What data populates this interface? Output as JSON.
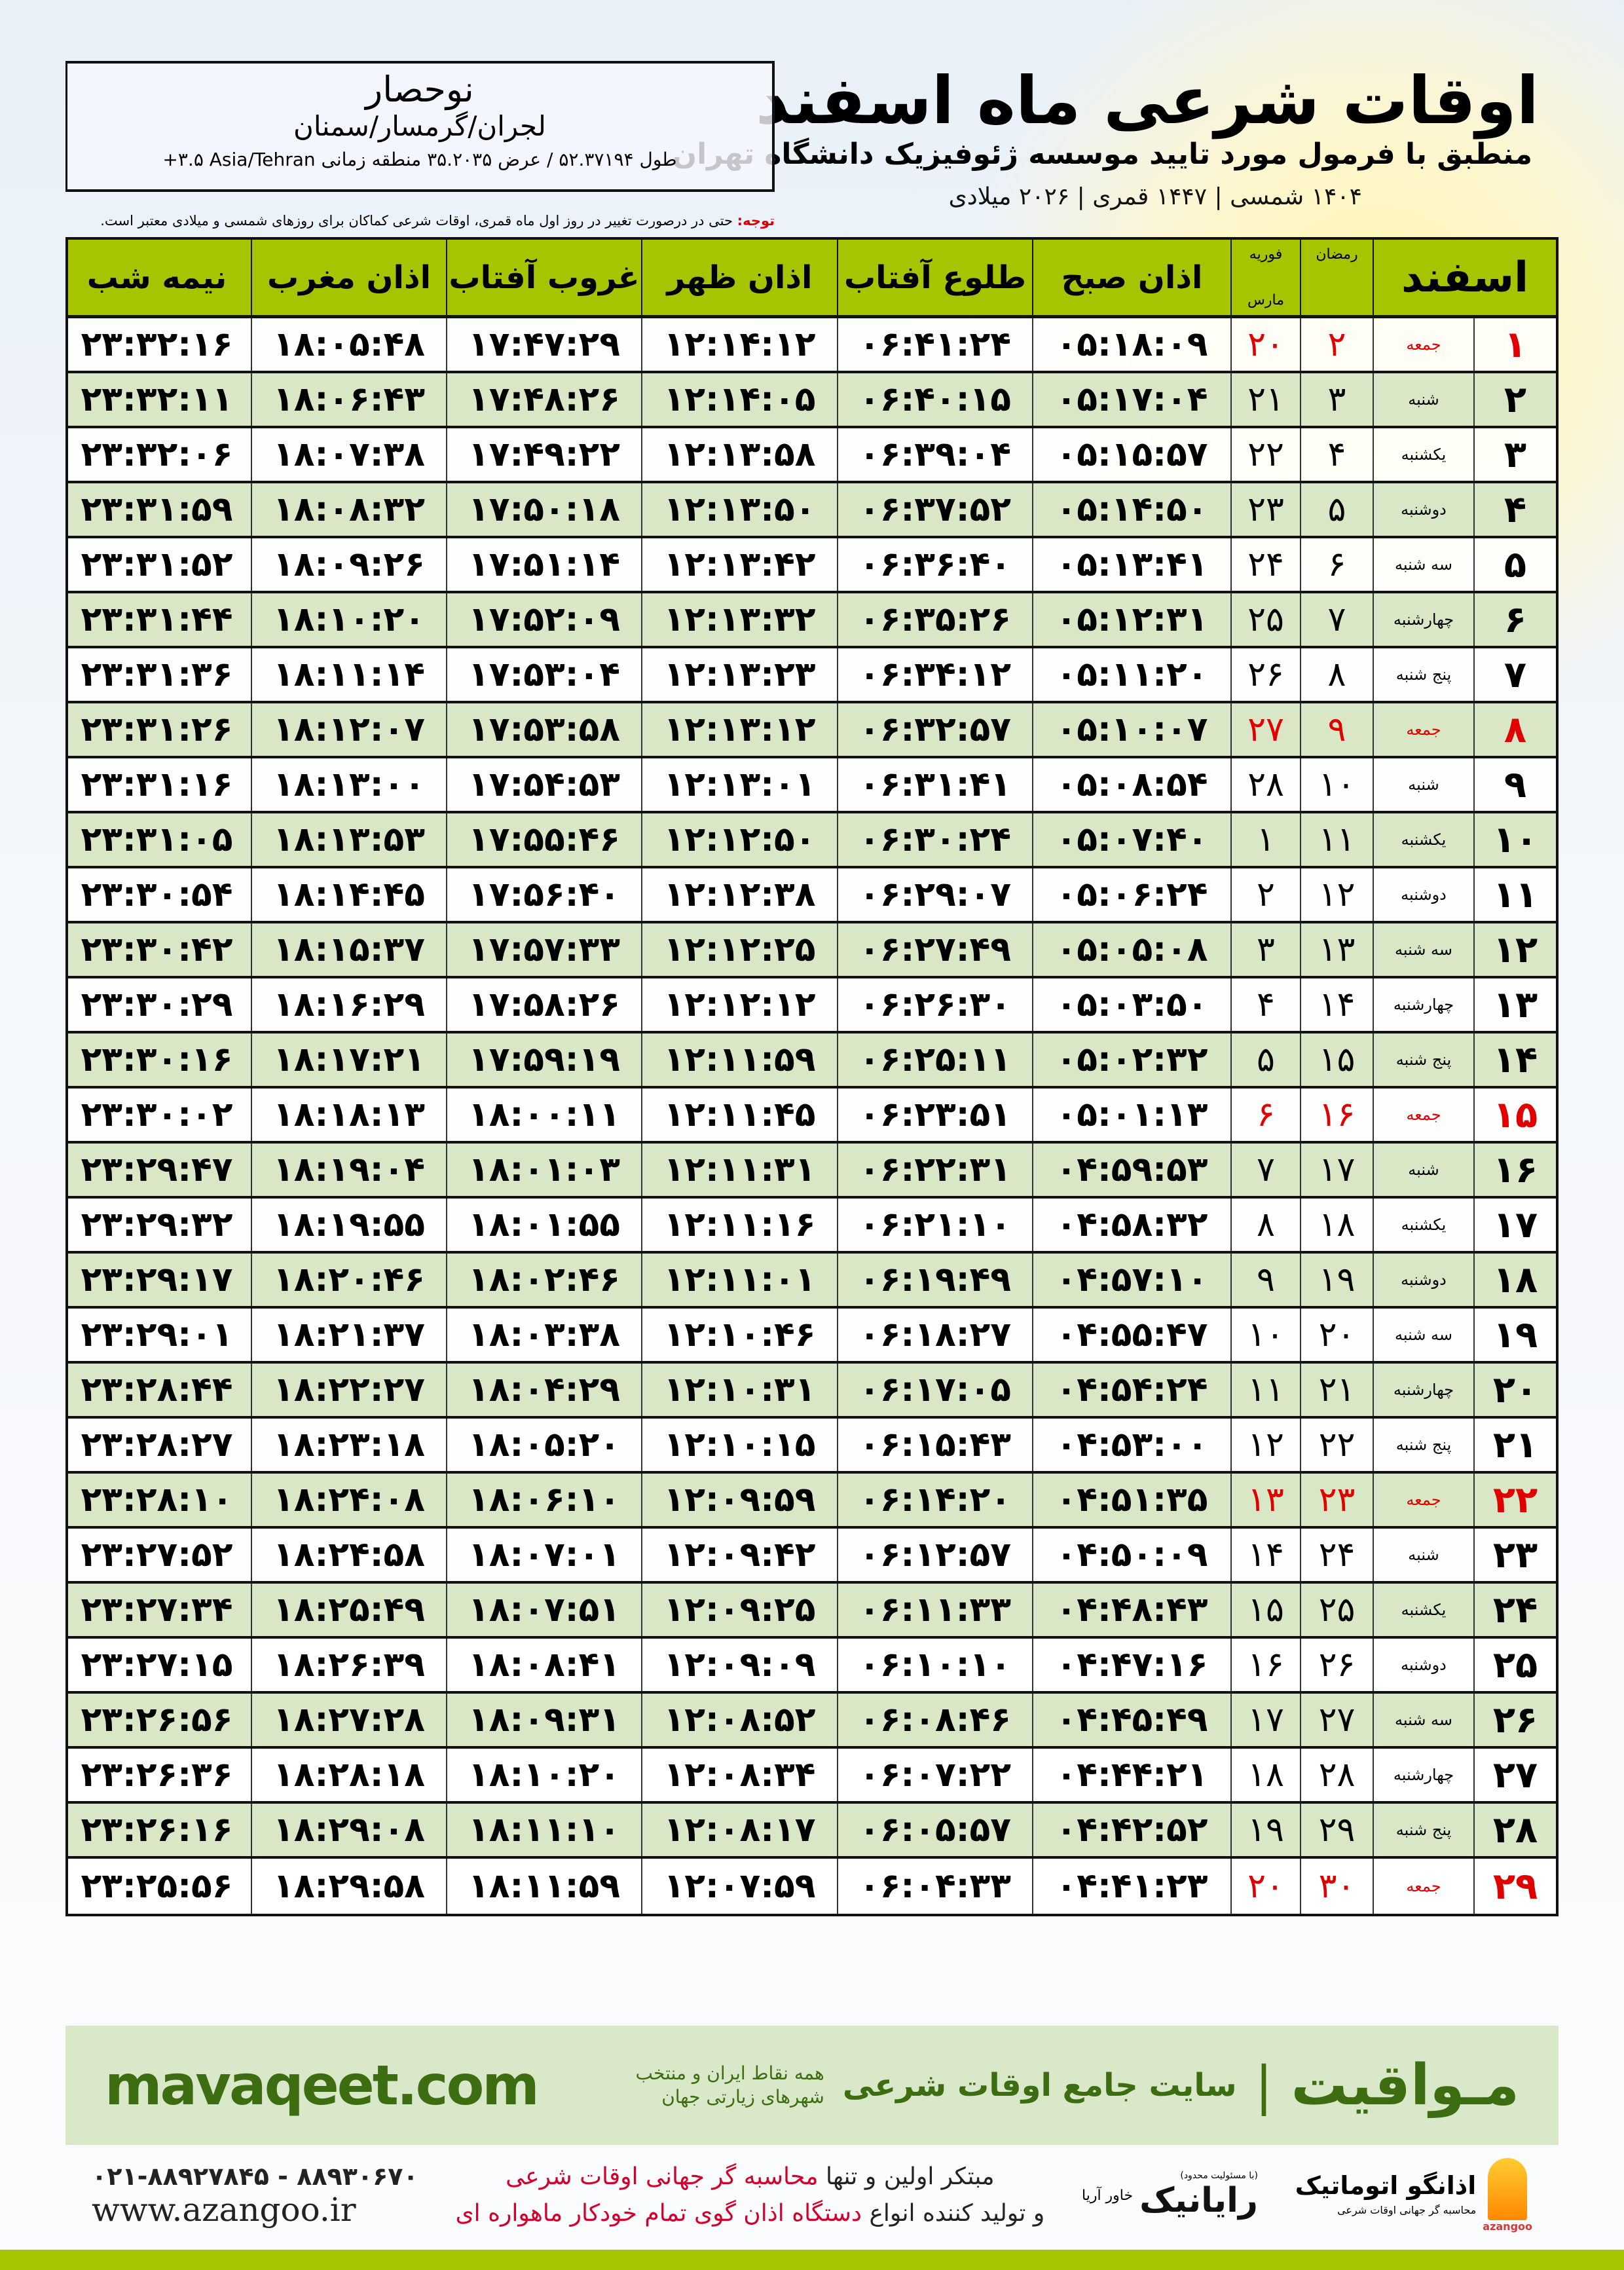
{
  "header": {
    "title": "اوقات شرعی ماه اسفند",
    "subtitle": "منطبق با فرمول مورد تایید موسسه ژئوفیزیک دانشگاه تهران",
    "dates": "۱۴۰۴ شمسی | ۱۴۴۷ قمری | ۲۰۲۶ میلادی"
  },
  "location": {
    "name": "نوحصار",
    "path": "لجران/گرمسار/سمنان",
    "coords": "طول ۵۲.۳۷۱۹۴ / عرض ۳۵.۲۰۳۵ منطقه زمانی ‎+۳.۵ Asia/Tehran"
  },
  "note": {
    "label": "توجه:",
    "text": " حتی در درصورت تغییر در روز اول ماه قمری، اوقات شرعی کماکان برای روزهای شمسی و میلادی معتبر است."
  },
  "columns": {
    "month": "اسفند",
    "ramadan": "رمضان",
    "feb": "فوریه",
    "march": "مارس",
    "fajr": "اذان صبح",
    "sunrise": "طلوع آفتاب",
    "dhuhr": "اذان ظهر",
    "sunset": "غروب آفتاب",
    "maghrib": "اذان مغرب",
    "midnight": "نیمه شب"
  },
  "colors": {
    "header_green": "#a6c400",
    "row_green": "#d9e7c6",
    "holiday_red": "#e00000",
    "brand_green": "#3c6d10"
  },
  "rows": [
    {
      "day": "۱",
      "weekday": "جمعه",
      "ramadan": "۲",
      "gregorian": "۲۰",
      "fajr": "۰۵:۱۸:۰۹",
      "sunrise": "۰۶:۴۱:۲۴",
      "dhuhr": "۱۲:۱۴:۱۲",
      "sunset": "۱۷:۴۷:۲۹",
      "maghrib": "۱۸:۰۵:۴۸",
      "midnight": "۲۳:۳۲:۱۶",
      "holiday": true
    },
    {
      "day": "۲",
      "weekday": "شنبه",
      "ramadan": "۳",
      "gregorian": "۲۱",
      "fajr": "۰۵:۱۷:۰۴",
      "sunrise": "۰۶:۴۰:۱۵",
      "dhuhr": "۱۲:۱۴:۰۵",
      "sunset": "۱۷:۴۸:۲۶",
      "maghrib": "۱۸:۰۶:۴۳",
      "midnight": "۲۳:۳۲:۱۱",
      "holiday": false
    },
    {
      "day": "۳",
      "weekday": "یکشنبه",
      "ramadan": "۴",
      "gregorian": "۲۲",
      "fajr": "۰۵:۱۵:۵۷",
      "sunrise": "۰۶:۳۹:۰۴",
      "dhuhr": "۱۲:۱۳:۵۸",
      "sunset": "۱۷:۴۹:۲۲",
      "maghrib": "۱۸:۰۷:۳۸",
      "midnight": "۲۳:۳۲:۰۶",
      "holiday": false
    },
    {
      "day": "۴",
      "weekday": "دوشنبه",
      "ramadan": "۵",
      "gregorian": "۲۳",
      "fajr": "۰۵:۱۴:۵۰",
      "sunrise": "۰۶:۳۷:۵۲",
      "dhuhr": "۱۲:۱۳:۵۰",
      "sunset": "۱۷:۵۰:۱۸",
      "maghrib": "۱۸:۰۸:۳۲",
      "midnight": "۲۳:۳۱:۵۹",
      "holiday": false
    },
    {
      "day": "۵",
      "weekday": "سه شنبه",
      "ramadan": "۶",
      "gregorian": "۲۴",
      "fajr": "۰۵:۱۳:۴۱",
      "sunrise": "۰۶:۳۶:۴۰",
      "dhuhr": "۱۲:۱۳:۴۲",
      "sunset": "۱۷:۵۱:۱۴",
      "maghrib": "۱۸:۰۹:۲۶",
      "midnight": "۲۳:۳۱:۵۲",
      "holiday": false
    },
    {
      "day": "۶",
      "weekday": "چهارشنبه",
      "ramadan": "۷",
      "gregorian": "۲۵",
      "fajr": "۰۵:۱۲:۳۱",
      "sunrise": "۰۶:۳۵:۲۶",
      "dhuhr": "۱۲:۱۳:۳۲",
      "sunset": "۱۷:۵۲:۰۹",
      "maghrib": "۱۸:۱۰:۲۰",
      "midnight": "۲۳:۳۱:۴۴",
      "holiday": false
    },
    {
      "day": "۷",
      "weekday": "پنج شنبه",
      "ramadan": "۸",
      "gregorian": "۲۶",
      "fajr": "۰۵:۱۱:۲۰",
      "sunrise": "۰۶:۳۴:۱۲",
      "dhuhr": "۱۲:۱۳:۲۳",
      "sunset": "۱۷:۵۳:۰۴",
      "maghrib": "۱۸:۱۱:۱۴",
      "midnight": "۲۳:۳۱:۳۶",
      "holiday": false
    },
    {
      "day": "۸",
      "weekday": "جمعه",
      "ramadan": "۹",
      "gregorian": "۲۷",
      "fajr": "۰۵:۱۰:۰۷",
      "sunrise": "۰۶:۳۲:۵۷",
      "dhuhr": "۱۲:۱۳:۱۲",
      "sunset": "۱۷:۵۳:۵۸",
      "maghrib": "۱۸:۱۲:۰۷",
      "midnight": "۲۳:۳۱:۲۶",
      "holiday": true
    },
    {
      "day": "۹",
      "weekday": "شنبه",
      "ramadan": "۱۰",
      "gregorian": "۲۸",
      "fajr": "۰۵:۰۸:۵۴",
      "sunrise": "۰۶:۳۱:۴۱",
      "dhuhr": "۱۲:۱۳:۰۱",
      "sunset": "۱۷:۵۴:۵۳",
      "maghrib": "۱۸:۱۳:۰۰",
      "midnight": "۲۳:۳۱:۱۶",
      "holiday": false
    },
    {
      "day": "۱۰",
      "weekday": "یکشنبه",
      "ramadan": "۱۱",
      "gregorian": "۱",
      "fajr": "۰۵:۰۷:۴۰",
      "sunrise": "۰۶:۳۰:۲۴",
      "dhuhr": "۱۲:۱۲:۵۰",
      "sunset": "۱۷:۵۵:۴۶",
      "maghrib": "۱۸:۱۳:۵۳",
      "midnight": "۲۳:۳۱:۰۵",
      "holiday": false
    },
    {
      "day": "۱۱",
      "weekday": "دوشنبه",
      "ramadan": "۱۲",
      "gregorian": "۲",
      "fajr": "۰۵:۰۶:۲۴",
      "sunrise": "۰۶:۲۹:۰۷",
      "dhuhr": "۱۲:۱۲:۳۸",
      "sunset": "۱۷:۵۶:۴۰",
      "maghrib": "۱۸:۱۴:۴۵",
      "midnight": "۲۳:۳۰:۵۴",
      "holiday": false
    },
    {
      "day": "۱۲",
      "weekday": "سه شنبه",
      "ramadan": "۱۳",
      "gregorian": "۳",
      "fajr": "۰۵:۰۵:۰۸",
      "sunrise": "۰۶:۲۷:۴۹",
      "dhuhr": "۱۲:۱۲:۲۵",
      "sunset": "۱۷:۵۷:۳۳",
      "maghrib": "۱۸:۱۵:۳۷",
      "midnight": "۲۳:۳۰:۴۲",
      "holiday": false
    },
    {
      "day": "۱۳",
      "weekday": "چهارشنبه",
      "ramadan": "۱۴",
      "gregorian": "۴",
      "fajr": "۰۵:۰۳:۵۰",
      "sunrise": "۰۶:۲۶:۳۰",
      "dhuhr": "۱۲:۱۲:۱۲",
      "sunset": "۱۷:۵۸:۲۶",
      "maghrib": "۱۸:۱۶:۲۹",
      "midnight": "۲۳:۳۰:۲۹",
      "holiday": false
    },
    {
      "day": "۱۴",
      "weekday": "پنج شنبه",
      "ramadan": "۱۵",
      "gregorian": "۵",
      "fajr": "۰۵:۰۲:۳۲",
      "sunrise": "۰۶:۲۵:۱۱",
      "dhuhr": "۱۲:۱۱:۵۹",
      "sunset": "۱۷:۵۹:۱۹",
      "maghrib": "۱۸:۱۷:۲۱",
      "midnight": "۲۳:۳۰:۱۶",
      "holiday": false
    },
    {
      "day": "۱۵",
      "weekday": "جمعه",
      "ramadan": "۱۶",
      "gregorian": "۶",
      "fajr": "۰۵:۰۱:۱۳",
      "sunrise": "۰۶:۲۳:۵۱",
      "dhuhr": "۱۲:۱۱:۴۵",
      "sunset": "۱۸:۰۰:۱۱",
      "maghrib": "۱۸:۱۸:۱۳",
      "midnight": "۲۳:۳۰:۰۲",
      "holiday": true
    },
    {
      "day": "۱۶",
      "weekday": "شنبه",
      "ramadan": "۱۷",
      "gregorian": "۷",
      "fajr": "۰۴:۵۹:۵۳",
      "sunrise": "۰۶:۲۲:۳۱",
      "dhuhr": "۱۲:۱۱:۳۱",
      "sunset": "۱۸:۰۱:۰۳",
      "maghrib": "۱۸:۱۹:۰۴",
      "midnight": "۲۳:۲۹:۴۷",
      "holiday": false
    },
    {
      "day": "۱۷",
      "weekday": "یکشنبه",
      "ramadan": "۱۸",
      "gregorian": "۸",
      "fajr": "۰۴:۵۸:۳۲",
      "sunrise": "۰۶:۲۱:۱۰",
      "dhuhr": "۱۲:۱۱:۱۶",
      "sunset": "۱۸:۰۱:۵۵",
      "maghrib": "۱۸:۱۹:۵۵",
      "midnight": "۲۳:۲۹:۳۲",
      "holiday": false
    },
    {
      "day": "۱۸",
      "weekday": "دوشنبه",
      "ramadan": "۱۹",
      "gregorian": "۹",
      "fajr": "۰۴:۵۷:۱۰",
      "sunrise": "۰۶:۱۹:۴۹",
      "dhuhr": "۱۲:۱۱:۰۱",
      "sunset": "۱۸:۰۲:۴۶",
      "maghrib": "۱۸:۲۰:۴۶",
      "midnight": "۲۳:۲۹:۱۷",
      "holiday": false
    },
    {
      "day": "۱۹",
      "weekday": "سه شنبه",
      "ramadan": "۲۰",
      "gregorian": "۱۰",
      "fajr": "۰۴:۵۵:۴۷",
      "sunrise": "۰۶:۱۸:۲۷",
      "dhuhr": "۱۲:۱۰:۴۶",
      "sunset": "۱۸:۰۳:۳۸",
      "maghrib": "۱۸:۲۱:۳۷",
      "midnight": "۲۳:۲۹:۰۱",
      "holiday": false
    },
    {
      "day": "۲۰",
      "weekday": "چهارشنبه",
      "ramadan": "۲۱",
      "gregorian": "۱۱",
      "fajr": "۰۴:۵۴:۲۴",
      "sunrise": "۰۶:۱۷:۰۵",
      "dhuhr": "۱۲:۱۰:۳۱",
      "sunset": "۱۸:۰۴:۲۹",
      "maghrib": "۱۸:۲۲:۲۷",
      "midnight": "۲۳:۲۸:۴۴",
      "holiday": false
    },
    {
      "day": "۲۱",
      "weekday": "پنج شنبه",
      "ramadan": "۲۲",
      "gregorian": "۱۲",
      "fajr": "۰۴:۵۳:۰۰",
      "sunrise": "۰۶:۱۵:۴۳",
      "dhuhr": "۱۲:۱۰:۱۵",
      "sunset": "۱۸:۰۵:۲۰",
      "maghrib": "۱۸:۲۳:۱۸",
      "midnight": "۲۳:۲۸:۲۷",
      "holiday": false
    },
    {
      "day": "۲۲",
      "weekday": "جمعه",
      "ramadan": "۲۳",
      "gregorian": "۱۳",
      "fajr": "۰۴:۵۱:۳۵",
      "sunrise": "۰۶:۱۴:۲۰",
      "dhuhr": "۱۲:۰۹:۵۹",
      "sunset": "۱۸:۰۶:۱۰",
      "maghrib": "۱۸:۲۴:۰۸",
      "midnight": "۲۳:۲۸:۱۰",
      "holiday": true
    },
    {
      "day": "۲۳",
      "weekday": "شنبه",
      "ramadan": "۲۴",
      "gregorian": "۱۴",
      "fajr": "۰۴:۵۰:۰۹",
      "sunrise": "۰۶:۱۲:۵۷",
      "dhuhr": "۱۲:۰۹:۴۲",
      "sunset": "۱۸:۰۷:۰۱",
      "maghrib": "۱۸:۲۴:۵۸",
      "midnight": "۲۳:۲۷:۵۲",
      "holiday": false
    },
    {
      "day": "۲۴",
      "weekday": "یکشنبه",
      "ramadan": "۲۵",
      "gregorian": "۱۵",
      "fajr": "۰۴:۴۸:۴۳",
      "sunrise": "۰۶:۱۱:۳۳",
      "dhuhr": "۱۲:۰۹:۲۵",
      "sunset": "۱۸:۰۷:۵۱",
      "maghrib": "۱۸:۲۵:۴۹",
      "midnight": "۲۳:۲۷:۳۴",
      "holiday": false
    },
    {
      "day": "۲۵",
      "weekday": "دوشنبه",
      "ramadan": "۲۶",
      "gregorian": "۱۶",
      "fajr": "۰۴:۴۷:۱۶",
      "sunrise": "۰۶:۱۰:۱۰",
      "dhuhr": "۱۲:۰۹:۰۹",
      "sunset": "۱۸:۰۸:۴۱",
      "maghrib": "۱۸:۲۶:۳۹",
      "midnight": "۲۳:۲۷:۱۵",
      "holiday": false
    },
    {
      "day": "۲۶",
      "weekday": "سه شنبه",
      "ramadan": "۲۷",
      "gregorian": "۱۷",
      "fajr": "۰۴:۴۵:۴۹",
      "sunrise": "۰۶:۰۸:۴۶",
      "dhuhr": "۱۲:۰۸:۵۲",
      "sunset": "۱۸:۰۹:۳۱",
      "maghrib": "۱۸:۲۷:۲۸",
      "midnight": "۲۳:۲۶:۵۶",
      "holiday": false
    },
    {
      "day": "۲۷",
      "weekday": "چهارشنبه",
      "ramadan": "۲۸",
      "gregorian": "۱۸",
      "fajr": "۰۴:۴۴:۲۱",
      "sunrise": "۰۶:۰۷:۲۲",
      "dhuhr": "۱۲:۰۸:۳۴",
      "sunset": "۱۸:۱۰:۲۰",
      "maghrib": "۱۸:۲۸:۱۸",
      "midnight": "۲۳:۲۶:۳۶",
      "holiday": false
    },
    {
      "day": "۲۸",
      "weekday": "پنج شنبه",
      "ramadan": "۲۹",
      "gregorian": "۱۹",
      "fajr": "۰۴:۴۲:۵۲",
      "sunrise": "۰۶:۰۵:۵۷",
      "dhuhr": "۱۲:۰۸:۱۷",
      "sunset": "۱۸:۱۱:۱۰",
      "maghrib": "۱۸:۲۹:۰۸",
      "midnight": "۲۳:۲۶:۱۶",
      "holiday": false
    },
    {
      "day": "۲۹",
      "weekday": "جمعه",
      "ramadan": "۳۰",
      "gregorian": "۲۰",
      "fajr": "۰۴:۴۱:۲۳",
      "sunrise": "۰۶:۰۴:۳۳",
      "dhuhr": "۱۲:۰۷:۵۹",
      "sunset": "۱۸:۱۱:۵۹",
      "maghrib": "۱۸:۲۹:۵۸",
      "midnight": "۲۳:۲۵:۵۶",
      "holiday": true
    }
  ],
  "banner": {
    "logo": "مـواقیت",
    "separator": "|",
    "tagline": "سایت جامع اوقات شرعی",
    "subtagline": "همه نقاط ایران و منتخب شهرهای زیارتی جهان",
    "url": "mavaqeet.com"
  },
  "footer": {
    "promo_line1_a": "مبتکر اولین و تنها ",
    "promo_line1_b": "محاسبه گر جهانی اوقات شرعی",
    "promo_line2_a": "و تولید کننده انواع ",
    "promo_line2_b": "دستگاه اذان گوی تمام خودکار ماهواره ای",
    "phone": "۰۲۱-۸۸۹۲۷۸۴۵ - ۸۸۹۳۰۶۷۰",
    "website": "www.azangoo.ir",
    "rayanic_name": "رایانیک",
    "rayanic_sub": "خاور آریا",
    "rayanic_note": "(با مسئولیت محدود)",
    "azangoo_name": "اذانگو اتوماتیک",
    "azangoo_sub": "محاسبه گر جهانی اوقات شرعی",
    "azangoo_en": "azangoo"
  }
}
